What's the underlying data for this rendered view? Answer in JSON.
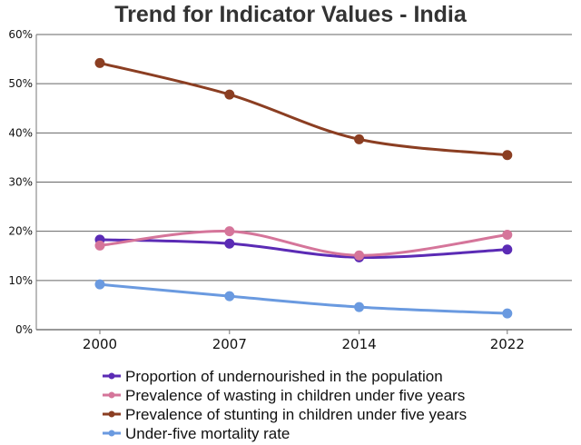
{
  "chart_data": {
    "type": "line",
    "title": "Trend for Indicator Values - India",
    "xlabel": "",
    "ylabel": "",
    "x": [
      2000,
      2007,
      2014,
      2022
    ],
    "x_tick_labels": [
      "2000",
      "2007",
      "2014",
      "2022"
    ],
    "ylim": [
      0,
      60
    ],
    "y_tick_labels": [
      "0%",
      "10%",
      "20%",
      "30%",
      "40%",
      "50%",
      "60%"
    ],
    "y_ticks": [
      0,
      10,
      20,
      30,
      40,
      50,
      60
    ],
    "grid": "horizontal",
    "legend_position": "bottom",
    "series": [
      {
        "name": "Proportion of undernourished in the population",
        "color": "#5b2bb5",
        "values": [
          18.3,
          17.5,
          14.7,
          16.3
        ]
      },
      {
        "name": "Prevalence of wasting in children under five years",
        "color": "#d5759a",
        "values": [
          17.1,
          20.0,
          15.1,
          19.3
        ]
      },
      {
        "name": "Prevalence of stunting in children under five years",
        "color": "#8b3e22",
        "values": [
          54.2,
          47.8,
          38.7,
          35.5
        ]
      },
      {
        "name": "Under-five mortality rate",
        "color": "#6a9ae0",
        "values": [
          9.2,
          6.8,
          4.6,
          3.3
        ]
      }
    ]
  }
}
